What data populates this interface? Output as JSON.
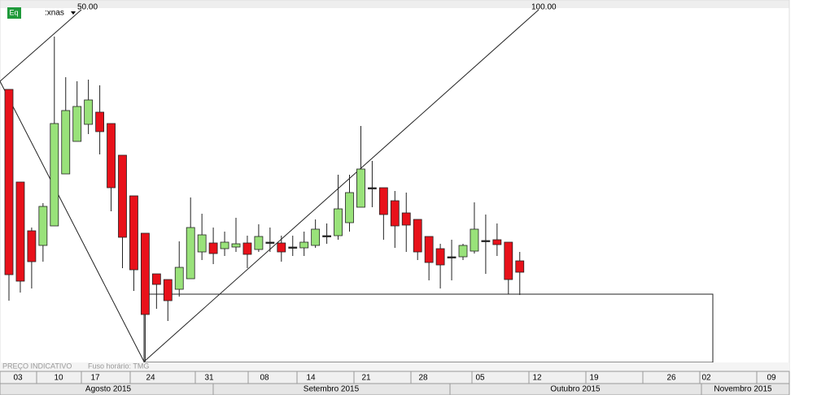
{
  "chart_data": {
    "type": "candlestick",
    "symbol": ":xnas",
    "badge": "Eq",
    "annotations": [
      "50.00",
      "100.00"
    ],
    "footer_left": "PREÇO INDICATIVO",
    "footer_tz": "Fuso horário: TMG",
    "ylim": [
      0,
      450
    ],
    "up_color": "#99e27a",
    "down_color": "#e8111a",
    "series": [
      {
        "open": [
          340,
          226,
          166,
          148,
          172,
          236,
          276,
          297,
          312,
          298,
          259,
          209,
          163,
          113,
          106,
          94,
          107,
          140,
          151,
          144,
          146,
          151,
          143,
          152,
          151,
          146,
          145,
          148,
          160,
          160,
          176,
          195,
          219,
          219,
          203,
          188,
          180,
          159,
          144,
          134,
          134,
          141,
          154,
          155,
          152,
          129
        ],
        "high": [
          340,
          226,
          170,
          200,
          405,
          355,
          350,
          352,
          345,
          298,
          259,
          209,
          163,
          113,
          106,
          153,
          207,
          187,
          170,
          165,
          182,
          160,
          174,
          170,
          160,
          160,
          165,
          180,
          175,
          235,
          235,
          295,
          252,
          219,
          215,
          213,
          180,
          159,
          150,
          155,
          150,
          201,
          186,
          175,
          152,
          140
        ],
        "low": [
          80,
          90,
          95,
          128,
          172,
          236,
          276,
          285,
          260,
          190,
          120,
          92,
          5,
          70,
          55,
          85,
          107,
          130,
          125,
          135,
          140,
          120,
          140,
          140,
          128,
          135,
          135,
          145,
          150,
          155,
          165,
          195,
          195,
          155,
          145,
          140,
          130,
          105,
          95,
          105,
          130,
          138,
          113,
          135,
          88,
          87
        ],
        "close": [
          112,
          104,
          128,
          196,
          298,
          314,
          319,
          327,
          288,
          219,
          158,
          118,
          63,
          100,
          80,
          121,
          170,
          161,
          138,
          152,
          150,
          137,
          159,
          152,
          140,
          146,
          152,
          168,
          160,
          193,
          213,
          242,
          219,
          186,
          172,
          173,
          140,
          127,
          124,
          134,
          148,
          168,
          154,
          149,
          106,
          115
        ]
      }
    ],
    "week_labels": [
      "03",
      "10",
      "17",
      "24",
      "31",
      "08",
      "14",
      "21",
      "28",
      "05",
      "12",
      "19",
      "26",
      "02",
      "09"
    ],
    "month_labels": [
      "Agosto 2015",
      "Setembro 2015",
      "Outubro 2015",
      "Novembro 2015"
    ]
  }
}
